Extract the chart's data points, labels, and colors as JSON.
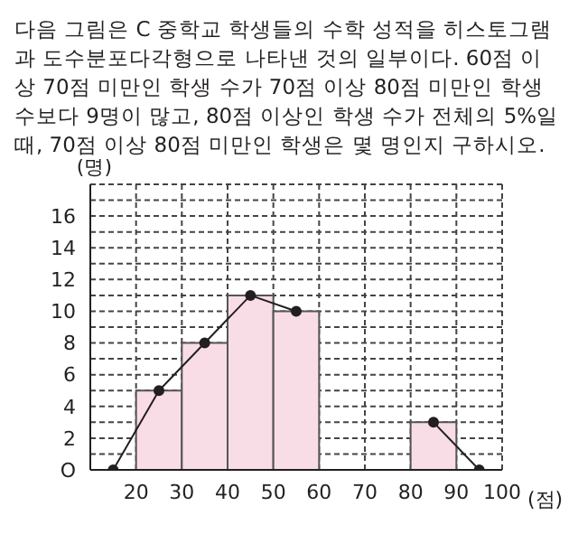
{
  "chart_data": {
    "type": "histogram",
    "title": "다음 그림은 C 중학교 학생들의 수학 성적을 히스토그램과 도수분포다각형으로 나타낸 것의 일부이다. 60점 이상 70점 미만인 학생 수가 70점 이상 80점 미만인 학생 수보다 9명이 많고, 80점 이상인 학생 수가 전체의 5%일 때, 70점 이상 80점 미만인 학생은 몇 명인지 구하시오.",
    "ylabel": "(명)",
    "xlabel": "(점)",
    "bins": [
      20,
      30,
      40,
      50,
      60,
      70,
      80,
      90
    ],
    "values": [
      5,
      8,
      11,
      10,
      null,
      null,
      3
    ],
    "color": "#f9dde6",
    "series": [
      {
        "type": "line",
        "x": [
          15,
          25,
          35,
          45,
          55,
          65,
          75,
          85,
          95
        ],
        "values": [
          0,
          5,
          8,
          11,
          10,
          null,
          null,
          3,
          0
        ],
        "color": "#231f20"
      }
    ],
    "marker": "circle",
    "xlim": [
      10,
      100
    ],
    "xticks": [
      20,
      30,
      40,
      50,
      60,
      70,
      80,
      90,
      100
    ],
    "ylim": [
      0,
      18
    ],
    "yticks": [
      {
        "value": 0,
        "label": "O"
      },
      {
        "value": 1,
        "label": null
      },
      2,
      {
        "value": 3,
        "label": null
      },
      4,
      {
        "value": 5,
        "label": null
      },
      6,
      {
        "value": 7,
        "label": null
      },
      8,
      {
        "value": 9,
        "label": null
      },
      10,
      {
        "value": 11,
        "label": null
      },
      12,
      {
        "value": 13,
        "label": null
      },
      14,
      {
        "value": 15,
        "label": null
      },
      16,
      {
        "value": 17,
        "label": null
      },
      {
        "value": 18,
        "label": null
      }
    ],
    "grid": true
  }
}
